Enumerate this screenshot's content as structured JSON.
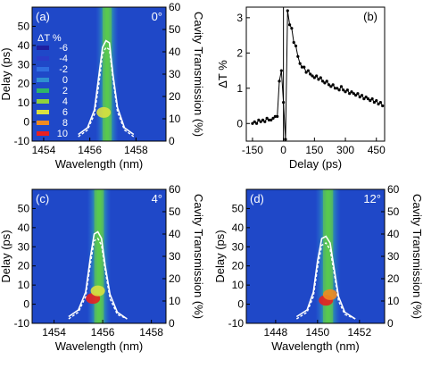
{
  "chart_data": [
    {
      "panel": "(a)",
      "type": "heatmap",
      "angle_label": "0°",
      "xlabel": "Wavelength (nm)",
      "ylabel": "Delay (ps)",
      "y2label": "Cavity Transmission (%)",
      "xlim": [
        1453.5,
        1459.3
      ],
      "ylim": [
        -10,
        60
      ],
      "y2lim": [
        0,
        60
      ],
      "xticks": [
        1454,
        1456,
        1458
      ],
      "yticks": [
        -10,
        0,
        10,
        20,
        30,
        40,
        50
      ],
      "y2ticks": [
        0,
        10,
        20,
        30,
        40,
        50,
        60
      ],
      "legend": {
        "title": "ΔT %",
        "entries": [
          {
            "label": "-6",
            "color": "#1f1fa0"
          },
          {
            "label": "-4",
            "color": "#2a3cc8"
          },
          {
            "label": "-2",
            "color": "#2f6ee0"
          },
          {
            "label": "0",
            "color": "#2f8fd0"
          },
          {
            "label": "2",
            "color": "#2fb56a"
          },
          {
            "label": "4",
            "color": "#8fd13c"
          },
          {
            "label": "6",
            "color": "#d9e040"
          },
          {
            "label": "8",
            "color": "#f08a20"
          },
          {
            "label": "10",
            "color": "#e82020"
          }
        ]
      },
      "band": {
        "center": 1456.75,
        "width": 0.45
      },
      "hotspots": [
        {
          "x": 1456.6,
          "y": 5,
          "level": 6
        }
      ],
      "transmission_solid": {
        "x": [
          1455.5,
          1455.9,
          1456.2,
          1456.4,
          1456.55,
          1456.7,
          1456.85,
          1457.0,
          1457.2,
          1457.5,
          1457.9
        ],
        "y": [
          3,
          6,
          14,
          30,
          42,
          45,
          44,
          30,
          15,
          6,
          3
        ]
      },
      "transmission_dashed": {
        "x": [
          1455.5,
          1455.9,
          1456.2,
          1456.4,
          1456.55,
          1456.7,
          1456.85,
          1457.0,
          1457.2,
          1457.5,
          1457.9
        ],
        "y": [
          2,
          5,
          12,
          26,
          39,
          42,
          41,
          28,
          13,
          5,
          2
        ]
      }
    },
    {
      "panel": "(b)",
      "type": "line",
      "xlabel": "Delay (ps)",
      "ylabel": "ΔT %",
      "xlim": [
        -180,
        490
      ],
      "ylim": [
        -0.5,
        3.3
      ],
      "xticks": [
        -150,
        0,
        150,
        300,
        450
      ],
      "yticks": [
        0,
        1,
        2,
        3
      ],
      "x": [
        -150,
        -140,
        -130,
        -120,
        -110,
        -100,
        -90,
        -80,
        -70,
        -60,
        -50,
        -40,
        -30,
        -20,
        -10,
        0,
        10,
        20,
        30,
        40,
        50,
        60,
        70,
        80,
        90,
        100,
        110,
        120,
        130,
        140,
        150,
        160,
        170,
        180,
        190,
        200,
        210,
        220,
        230,
        240,
        250,
        260,
        270,
        280,
        290,
        300,
        310,
        320,
        330,
        340,
        350,
        360,
        370,
        380,
        390,
        400,
        410,
        420,
        430,
        440,
        450,
        460,
        470,
        480
      ],
      "y": [
        0.0,
        0.05,
        0.0,
        0.1,
        0.05,
        0.1,
        0.05,
        0.15,
        0.1,
        0.1,
        0.15,
        0.2,
        0.2,
        1.2,
        1.5,
        0.6,
        -0.45,
        3.2,
        2.8,
        2.7,
        2.3,
        2.2,
        1.9,
        1.7,
        1.6,
        1.6,
        1.45,
        1.5,
        1.4,
        1.35,
        1.3,
        1.35,
        1.25,
        1.3,
        1.2,
        1.15,
        1.2,
        1.1,
        1.05,
        1.1,
        1.0,
        1.0,
        0.95,
        1.05,
        0.95,
        0.9,
        0.95,
        0.85,
        0.9,
        0.85,
        0.8,
        0.85,
        0.75,
        0.8,
        0.7,
        0.75,
        0.7,
        0.65,
        0.7,
        0.6,
        0.65,
        0.55,
        0.6,
        0.5
      ]
    },
    {
      "panel": "(c)",
      "type": "heatmap",
      "angle_label": "4°",
      "xlabel": "Wavelength (nm)",
      "ylabel": "Delay (ps)",
      "y2label": "Cavity Transmission (%)",
      "xlim": [
        1453.1,
        1458.6
      ],
      "ylim": [
        -10,
        60
      ],
      "y2lim": [
        0,
        60
      ],
      "xticks": [
        1454,
        1456,
        1458
      ],
      "yticks": [
        -10,
        0,
        10,
        20,
        30,
        40,
        50
      ],
      "y2ticks": [
        0,
        10,
        20,
        30,
        40,
        50,
        60
      ],
      "band": {
        "center": 1455.85,
        "width": 0.45
      },
      "hotspots": [
        {
          "x": 1455.6,
          "y": 3,
          "level": 10
        },
        {
          "x": 1455.8,
          "y": 7,
          "level": 6
        }
      ],
      "transmission_solid": {
        "x": [
          1454.6,
          1455.0,
          1455.3,
          1455.5,
          1455.65,
          1455.8,
          1455.95,
          1456.1,
          1456.3,
          1456.6,
          1457.0
        ],
        "y": [
          3,
          6,
          14,
          30,
          40,
          41,
          38,
          26,
          13,
          5,
          2
        ]
      },
      "transmission_dashed": {
        "x": [
          1454.6,
          1455.0,
          1455.3,
          1455.5,
          1455.65,
          1455.8,
          1455.95,
          1456.1,
          1456.3,
          1456.6,
          1457.0
        ],
        "y": [
          2,
          5,
          12,
          27,
          37,
          38,
          35,
          24,
          11,
          4,
          2
        ]
      }
    },
    {
      "panel": "(d)",
      "type": "heatmap",
      "angle_label": "12°",
      "xlabel": "Wavelength (nm)",
      "ylabel": "Delay (ps)",
      "y2label": "Cavity Transmission (%)",
      "xlim": [
        1446.6,
        1453.2
      ],
      "ylim": [
        -10,
        60
      ],
      "y2lim": [
        0,
        60
      ],
      "xticks": [
        1448,
        1450,
        1452
      ],
      "yticks": [
        -10,
        0,
        10,
        20,
        30,
        40,
        50
      ],
      "y2ticks": [
        0,
        10,
        20,
        30,
        40,
        50,
        60
      ],
      "band": {
        "center": 1450.5,
        "width": 0.55
      },
      "hotspots": [
        {
          "x": 1450.4,
          "y": 2,
          "level": 10
        },
        {
          "x": 1450.6,
          "y": 5,
          "level": 8
        }
      ],
      "transmission_solid": {
        "x": [
          1449.0,
          1449.5,
          1449.8,
          1450.0,
          1450.2,
          1450.4,
          1450.6,
          1450.8,
          1451.0,
          1451.3,
          1451.8
        ],
        "y": [
          3,
          6,
          14,
          28,
          38,
          39,
          36,
          24,
          12,
          5,
          2
        ]
      },
      "transmission_dashed": {
        "x": [
          1449.0,
          1449.5,
          1449.8,
          1450.0,
          1450.2,
          1450.4,
          1450.6,
          1450.8,
          1451.0,
          1451.3,
          1451.8
        ],
        "y": [
          2,
          5,
          12,
          25,
          35,
          36,
          33,
          22,
          10,
          4,
          2
        ]
      }
    }
  ]
}
